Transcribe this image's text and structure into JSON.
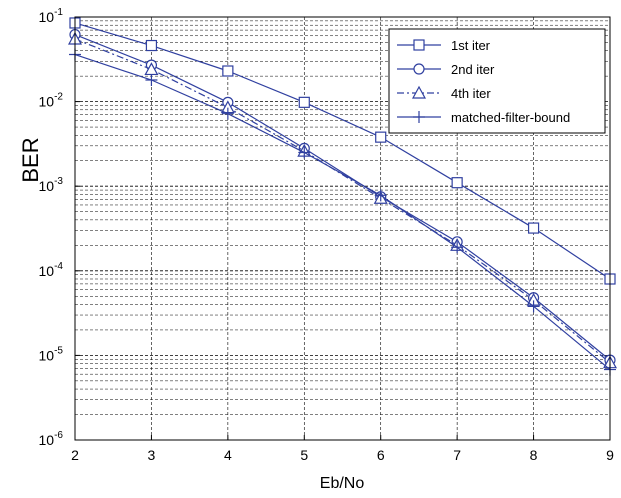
{
  "chart_data": {
    "type": "line",
    "xlabel": "Eb/No",
    "ylabel": "BER",
    "xlim": [
      2,
      9
    ],
    "ylim": [
      1e-06,
      0.1
    ],
    "yscale": "log",
    "grid": true,
    "legend_position": "top-right",
    "x_tick_labels": [
      "2",
      "3",
      "4",
      "5",
      "6",
      "7",
      "8",
      "9"
    ],
    "y_tick_labels": [
      {
        "base": "10",
        "exp": "-6"
      },
      {
        "base": "10",
        "exp": "-5"
      },
      {
        "base": "10",
        "exp": "-4"
      },
      {
        "base": "10",
        "exp": "-3"
      },
      {
        "base": "10",
        "exp": "-2"
      },
      {
        "base": "10",
        "exp": "-1"
      }
    ],
    "color": "#3040a0",
    "series": [
      {
        "name": "1st iter",
        "marker": "square",
        "dash": "solid",
        "x": [
          2,
          3,
          4,
          5,
          6,
          7,
          8,
          9
        ],
        "y": [
          0.085,
          0.046,
          0.023,
          0.0098,
          0.0038,
          0.0011,
          0.00032,
          8e-05
        ]
      },
      {
        "name": "2nd iter",
        "marker": "circle",
        "dash": "solid",
        "x": [
          2,
          3,
          4,
          5,
          6,
          7,
          8,
          9
        ],
        "y": [
          0.062,
          0.027,
          0.0098,
          0.0028,
          0.00075,
          0.00022,
          4.8e-05,
          8.8e-06
        ]
      },
      {
        "name": "4th iter",
        "marker": "triangle",
        "dash": "dashdot",
        "x": [
          2,
          3,
          4,
          5,
          6,
          7,
          8,
          9
        ],
        "y": [
          0.055,
          0.024,
          0.0085,
          0.0026,
          0.00072,
          0.0002,
          4.5e-05,
          8.2e-06
        ]
      },
      {
        "name": "matched-filter-bound",
        "marker": "plus",
        "dash": "solid",
        "x": [
          2,
          3,
          4,
          5,
          6,
          7,
          8,
          9
        ],
        "y": [
          0.036,
          0.018,
          0.0072,
          0.0025,
          0.00078,
          0.00019,
          3.8e-05,
          6.8e-06
        ]
      }
    ]
  }
}
